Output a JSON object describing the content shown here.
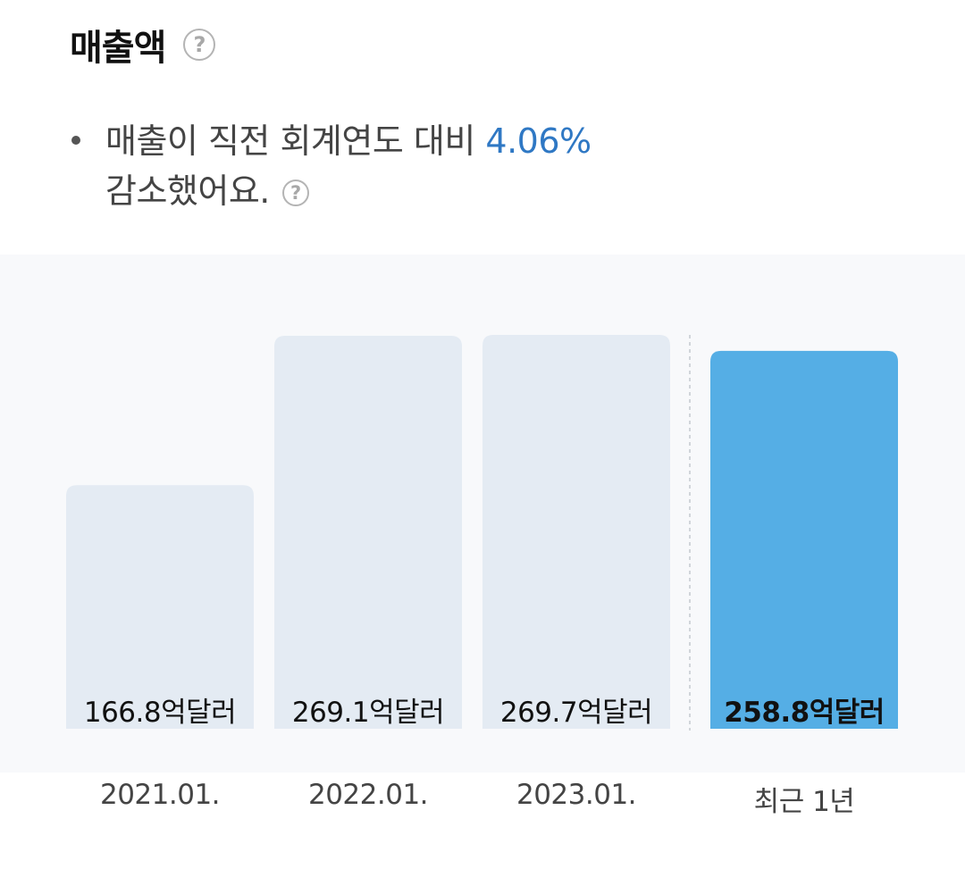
{
  "header": {
    "title": "매출액",
    "help_icon": "question-circle-icon"
  },
  "summary": {
    "text_before": "매출이 직전 회계연도 대비 ",
    "percent": "4.06%",
    "text_after": "감소했어요.",
    "help_icon": "question-circle-icon"
  },
  "colors": {
    "bar_past": "#e4ebf3",
    "bar_current": "#55aee5",
    "accent_text": "#2f78c4"
  },
  "chart_data": {
    "type": "bar",
    "categories": [
      "2021.01.",
      "2022.01.",
      "2023.01.",
      "최근 1년"
    ],
    "values": [
      166.8,
      269.1,
      269.7,
      258.8
    ],
    "value_labels": [
      "166.8억달러",
      "269.1억달러",
      "269.7억달러",
      "258.8억달러"
    ],
    "unit": "억달러",
    "highlighted_index": 3,
    "title": "",
    "xlabel": "",
    "ylabel": "",
    "grid": false
  }
}
